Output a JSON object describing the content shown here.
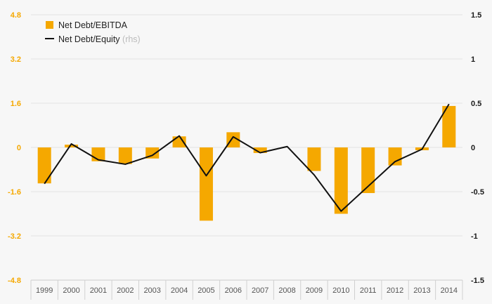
{
  "chart_data": {
    "type": "bar",
    "categories": [
      "1999",
      "2000",
      "2001",
      "2002",
      "2003",
      "2004",
      "2005",
      "2006",
      "2007",
      "2008",
      "2009",
      "2010",
      "2011",
      "2012",
      "2013",
      "2014"
    ],
    "series": [
      {
        "name": "Net Debt/EBITDA",
        "type": "bar",
        "axis": "left",
        "values": [
          -1.3,
          0.1,
          -0.5,
          -0.6,
          -0.4,
          0.4,
          -2.65,
          0.55,
          -0.2,
          0.0,
          -0.85,
          -2.4,
          -1.65,
          -0.65,
          -0.1,
          1.5
        ]
      },
      {
        "name": "Net Debt/Equity",
        "type": "line",
        "axis": "right",
        "values": [
          -0.41,
          0.04,
          -0.14,
          -0.19,
          -0.09,
          0.13,
          -0.32,
          0.12,
          -0.06,
          0.01,
          -0.31,
          -0.72,
          -0.44,
          -0.16,
          -0.02,
          0.49
        ]
      }
    ],
    "legend_note": "(rhs)",
    "ylim_left": [
      -4.8,
      4.8
    ],
    "yticks_left": [
      "4.8",
      "3.2",
      "1.6",
      "0",
      "-1.6",
      "-3.2",
      "-4.8"
    ],
    "ylim_right": [
      -1.5,
      1.5
    ],
    "yticks_right": [
      "1.5",
      "1",
      "0.5",
      "0",
      "-0.5",
      "-1",
      "-1.5"
    ],
    "grid": true,
    "legend_position": "top-left",
    "colors": {
      "bar": "#f5a800",
      "line": "#111111",
      "grid": "#e3e3e3"
    }
  }
}
